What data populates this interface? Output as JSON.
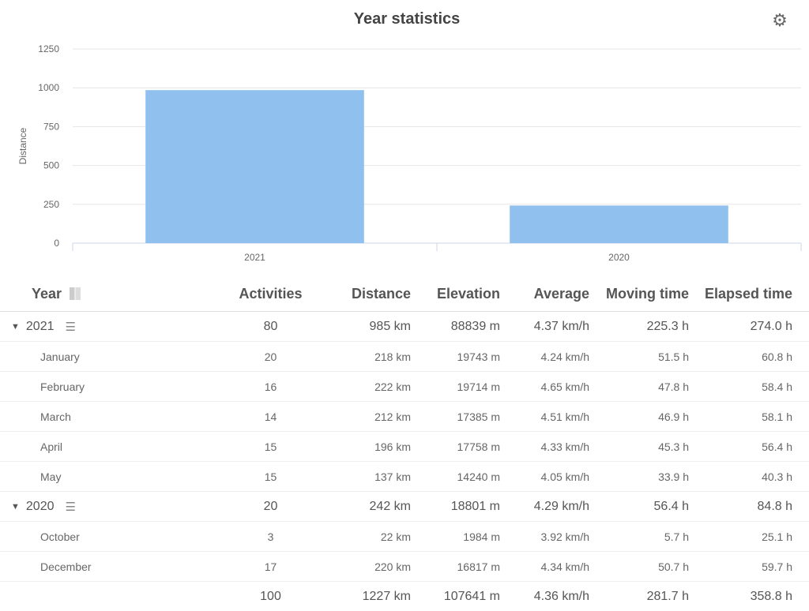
{
  "header": {
    "title": "Year statistics",
    "settings_icon": "gear-icon"
  },
  "chart_data": {
    "type": "bar",
    "title": "Year statistics",
    "xlabel": "",
    "ylabel": "Distance",
    "categories": [
      "2021",
      "2020"
    ],
    "values": [
      985,
      242
    ],
    "ylim": [
      0,
      1250
    ],
    "yticks": [
      "0",
      "250",
      "500",
      "750",
      "1000",
      "1250"
    ],
    "grid": true,
    "color": "#90c0ee"
  },
  "table": {
    "columns": [
      "Year",
      "Activities",
      "Distance",
      "Elevation",
      "Average",
      "Moving time",
      "Elapsed time"
    ],
    "groups": [
      {
        "year": "2021",
        "activities": "80",
        "distance": "985 km",
        "elevation": "88839 m",
        "average": "4.37 km/h",
        "moving": "225.3 h",
        "elapsed": "274.0 h",
        "months": [
          {
            "name": "January",
            "activities": "20",
            "distance": "218 km",
            "elevation": "19743 m",
            "average": "4.24 km/h",
            "moving": "51.5 h",
            "elapsed": "60.8 h"
          },
          {
            "name": "February",
            "activities": "16",
            "distance": "222 km",
            "elevation": "19714 m",
            "average": "4.65 km/h",
            "moving": "47.8 h",
            "elapsed": "58.4 h"
          },
          {
            "name": "March",
            "activities": "14",
            "distance": "212 km",
            "elevation": "17385 m",
            "average": "4.51 km/h",
            "moving": "46.9 h",
            "elapsed": "58.1 h"
          },
          {
            "name": "April",
            "activities": "15",
            "distance": "196 km",
            "elevation": "17758 m",
            "average": "4.33 km/h",
            "moving": "45.3 h",
            "elapsed": "56.4 h"
          },
          {
            "name": "May",
            "activities": "15",
            "distance": "137 km",
            "elevation": "14240 m",
            "average": "4.05 km/h",
            "moving": "33.9 h",
            "elapsed": "40.3 h"
          }
        ]
      },
      {
        "year": "2020",
        "activities": "20",
        "distance": "242 km",
        "elevation": "18801 m",
        "average": "4.29 km/h",
        "moving": "56.4 h",
        "elapsed": "84.8 h",
        "months": [
          {
            "name": "October",
            "activities": "3",
            "distance": "22 km",
            "elevation": "1984 m",
            "average": "3.92 km/h",
            "moving": "5.7 h",
            "elapsed": "25.1 h"
          },
          {
            "name": "December",
            "activities": "17",
            "distance": "220 km",
            "elevation": "16817 m",
            "average": "4.34 km/h",
            "moving": "50.7 h",
            "elapsed": "59.7 h"
          }
        ]
      }
    ],
    "total": {
      "label": "",
      "activities": "100",
      "distance": "1227 km",
      "elevation": "107641 m",
      "average": "4.36 km/h",
      "moving": "281.7 h",
      "elapsed": "358.8 h"
    }
  }
}
